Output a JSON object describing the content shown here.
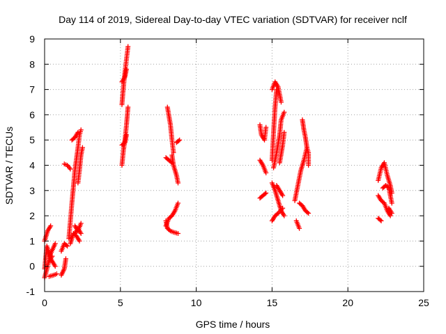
{
  "chart_data": {
    "type": "scatter",
    "title": "Day 114 of 2019, Sidereal Day-to-day VTEC variation (SDTVAR) for receiver nclf",
    "xlabel": "GPS time / hours",
    "ylabel": "SDTVAR / TECUs",
    "xlim": [
      0,
      25
    ],
    "ylim": [
      -1,
      9
    ],
    "xticks": [
      0,
      5,
      10,
      15,
      20,
      25
    ],
    "yticks": [
      -1,
      0,
      1,
      2,
      3,
      4,
      5,
      6,
      7,
      8,
      9
    ],
    "grid": true,
    "marker": "+",
    "series_color": "#ff0000",
    "segments": [
      [
        [
          0.0,
          -0.1
        ],
        [
          0.15,
          0.8
        ],
        [
          0.4,
          0.3
        ],
        [
          0.7,
          0.0
        ]
      ],
      [
        [
          0.0,
          -0.45
        ],
        [
          0.2,
          0.0
        ],
        [
          0.4,
          0.5
        ],
        [
          0.7,
          0.9
        ]
      ],
      [
        [
          0.0,
          1.0
        ],
        [
          0.2,
          1.4
        ],
        [
          0.4,
          1.6
        ]
      ],
      [
        [
          0.3,
          -0.4
        ],
        [
          0.6,
          -0.35
        ],
        [
          0.8,
          -0.3
        ]
      ],
      [
        [
          0.3,
          0.2
        ],
        [
          0.5,
          0.4
        ]
      ],
      [
        [
          1.1,
          -0.35
        ],
        [
          1.3,
          -0.1
        ],
        [
          1.4,
          0.3
        ]
      ],
      [
        [
          1.1,
          0.6
        ],
        [
          1.3,
          0.9
        ],
        [
          1.5,
          0.8
        ]
      ],
      [
        [
          1.3,
          4.05
        ],
        [
          1.5,
          4.0
        ],
        [
          1.7,
          3.85
        ]
      ],
      [
        [
          1.6,
          1.1
        ],
        [
          1.8,
          2.5
        ],
        [
          2.0,
          3.8
        ],
        [
          2.2,
          4.7
        ],
        [
          2.3,
          5.2
        ],
        [
          2.4,
          5.4
        ]
      ],
      [
        [
          1.7,
          0.9
        ],
        [
          1.9,
          1.3
        ],
        [
          2.1,
          1.2
        ],
        [
          2.3,
          1.0
        ]
      ],
      [
        [
          2.0,
          1.6
        ],
        [
          2.2,
          1.4
        ],
        [
          2.4,
          1.7
        ]
      ],
      [
        [
          2.2,
          3.3
        ],
        [
          2.3,
          3.8
        ],
        [
          2.4,
          4.4
        ],
        [
          2.5,
          4.7
        ]
      ],
      [
        [
          1.8,
          5.0
        ],
        [
          2.0,
          5.1
        ],
        [
          2.2,
          5.3
        ]
      ],
      [
        [
          2.0,
          1.3
        ],
        [
          2.2,
          1.5
        ],
        [
          2.4,
          1.3
        ]
      ],
      [
        [
          5.1,
          6.4
        ],
        [
          5.2,
          7.1
        ],
        [
          5.3,
          7.7
        ],
        [
          5.4,
          8.2
        ],
        [
          5.5,
          8.7
        ]
      ],
      [
        [
          5.1,
          7.3
        ],
        [
          5.3,
          7.5
        ],
        [
          5.4,
          7.8
        ]
      ],
      [
        [
          5.1,
          4.0
        ],
        [
          5.2,
          4.6
        ],
        [
          5.3,
          5.0
        ],
        [
          5.4,
          5.6
        ],
        [
          5.5,
          6.3
        ]
      ],
      [
        [
          5.1,
          4.8
        ],
        [
          5.3,
          4.9
        ],
        [
          5.4,
          5.2
        ]
      ],
      [
        [
          8.1,
          6.3
        ],
        [
          8.3,
          5.6
        ],
        [
          8.4,
          5.0
        ],
        [
          8.5,
          4.5
        ]
      ],
      [
        [
          8.4,
          4.4
        ],
        [
          8.5,
          4.0
        ],
        [
          8.7,
          3.6
        ],
        [
          8.8,
          3.3
        ]
      ],
      [
        [
          8.0,
          4.3
        ],
        [
          8.2,
          4.2
        ],
        [
          8.4,
          4.1
        ]
      ],
      [
        [
          8.7,
          4.9
        ],
        [
          8.9,
          5.0
        ]
      ],
      [
        [
          8.0,
          1.6
        ],
        [
          8.2,
          1.9
        ],
        [
          8.4,
          2.0
        ],
        [
          8.6,
          2.2
        ],
        [
          8.8,
          2.5
        ]
      ],
      [
        [
          8.0,
          1.8
        ],
        [
          8.1,
          1.5
        ],
        [
          8.3,
          1.4
        ],
        [
          8.5,
          1.35
        ],
        [
          8.8,
          1.3
        ]
      ],
      [
        [
          14.2,
          5.6
        ],
        [
          14.3,
          5.2
        ],
        [
          14.5,
          5.0
        ],
        [
          14.6,
          5.5
        ]
      ],
      [
        [
          14.2,
          4.2
        ],
        [
          14.4,
          4.0
        ],
        [
          14.6,
          3.7
        ]
      ],
      [
        [
          14.2,
          2.7
        ],
        [
          14.4,
          2.8
        ],
        [
          14.6,
          2.9
        ]
      ],
      [
        [
          15.0,
          7.0
        ],
        [
          15.2,
          7.3
        ],
        [
          15.4,
          7.1
        ],
        [
          15.6,
          6.5
        ]
      ],
      [
        [
          15.0,
          4.2
        ],
        [
          15.1,
          5.3
        ],
        [
          15.2,
          6.3
        ],
        [
          15.3,
          7.0
        ]
      ],
      [
        [
          15.0,
          3.3
        ],
        [
          15.2,
          3.0
        ],
        [
          15.4,
          2.6
        ],
        [
          15.6,
          2.2
        ],
        [
          15.8,
          2.0
        ]
      ],
      [
        [
          15.0,
          1.8
        ],
        [
          15.2,
          2.0
        ],
        [
          15.4,
          2.1
        ],
        [
          15.7,
          2.3
        ]
      ],
      [
        [
          15.1,
          3.9
        ],
        [
          15.3,
          4.5
        ],
        [
          15.5,
          5.2
        ],
        [
          15.6,
          5.8
        ],
        [
          15.8,
          6.1
        ]
      ],
      [
        [
          15.3,
          3.2
        ],
        [
          15.5,
          3.0
        ],
        [
          15.7,
          2.8
        ]
      ],
      [
        [
          15.5,
          4.1
        ],
        [
          15.7,
          4.8
        ],
        [
          15.8,
          5.3
        ]
      ],
      [
        [
          16.6,
          1.8
        ],
        [
          16.8,
          1.5
        ]
      ],
      [
        [
          16.5,
          2.6
        ],
        [
          16.7,
          3.2
        ],
        [
          16.9,
          3.8
        ],
        [
          17.1,
          4.2
        ],
        [
          17.3,
          4.7
        ]
      ],
      [
        [
          16.8,
          2.5
        ],
        [
          17.0,
          2.4
        ],
        [
          17.2,
          2.2
        ],
        [
          17.4,
          2.1
        ]
      ],
      [
        [
          17.0,
          5.8
        ],
        [
          17.1,
          5.4
        ],
        [
          17.2,
          5.1
        ],
        [
          17.3,
          4.7
        ],
        [
          17.4,
          4.5
        ],
        [
          17.4,
          4.0
        ]
      ],
      [
        [
          22.0,
          3.4
        ],
        [
          22.2,
          3.9
        ],
        [
          22.4,
          4.1
        ],
        [
          22.6,
          3.6
        ],
        [
          22.8,
          3.2
        ],
        [
          22.9,
          2.9
        ]
      ],
      [
        [
          22.0,
          2.8
        ],
        [
          22.2,
          2.6
        ],
        [
          22.4,
          2.5
        ],
        [
          22.6,
          2.2
        ],
        [
          22.8,
          2.0
        ]
      ],
      [
        [
          22.0,
          1.9
        ],
        [
          22.2,
          1.8
        ]
      ],
      [
        [
          22.3,
          3.1
        ],
        [
          22.5,
          3.2
        ],
        [
          22.7,
          3.1
        ],
        [
          22.9,
          2.5
        ]
      ],
      [
        [
          22.7,
          2.3
        ],
        [
          22.9,
          2.1
        ]
      ]
    ]
  }
}
